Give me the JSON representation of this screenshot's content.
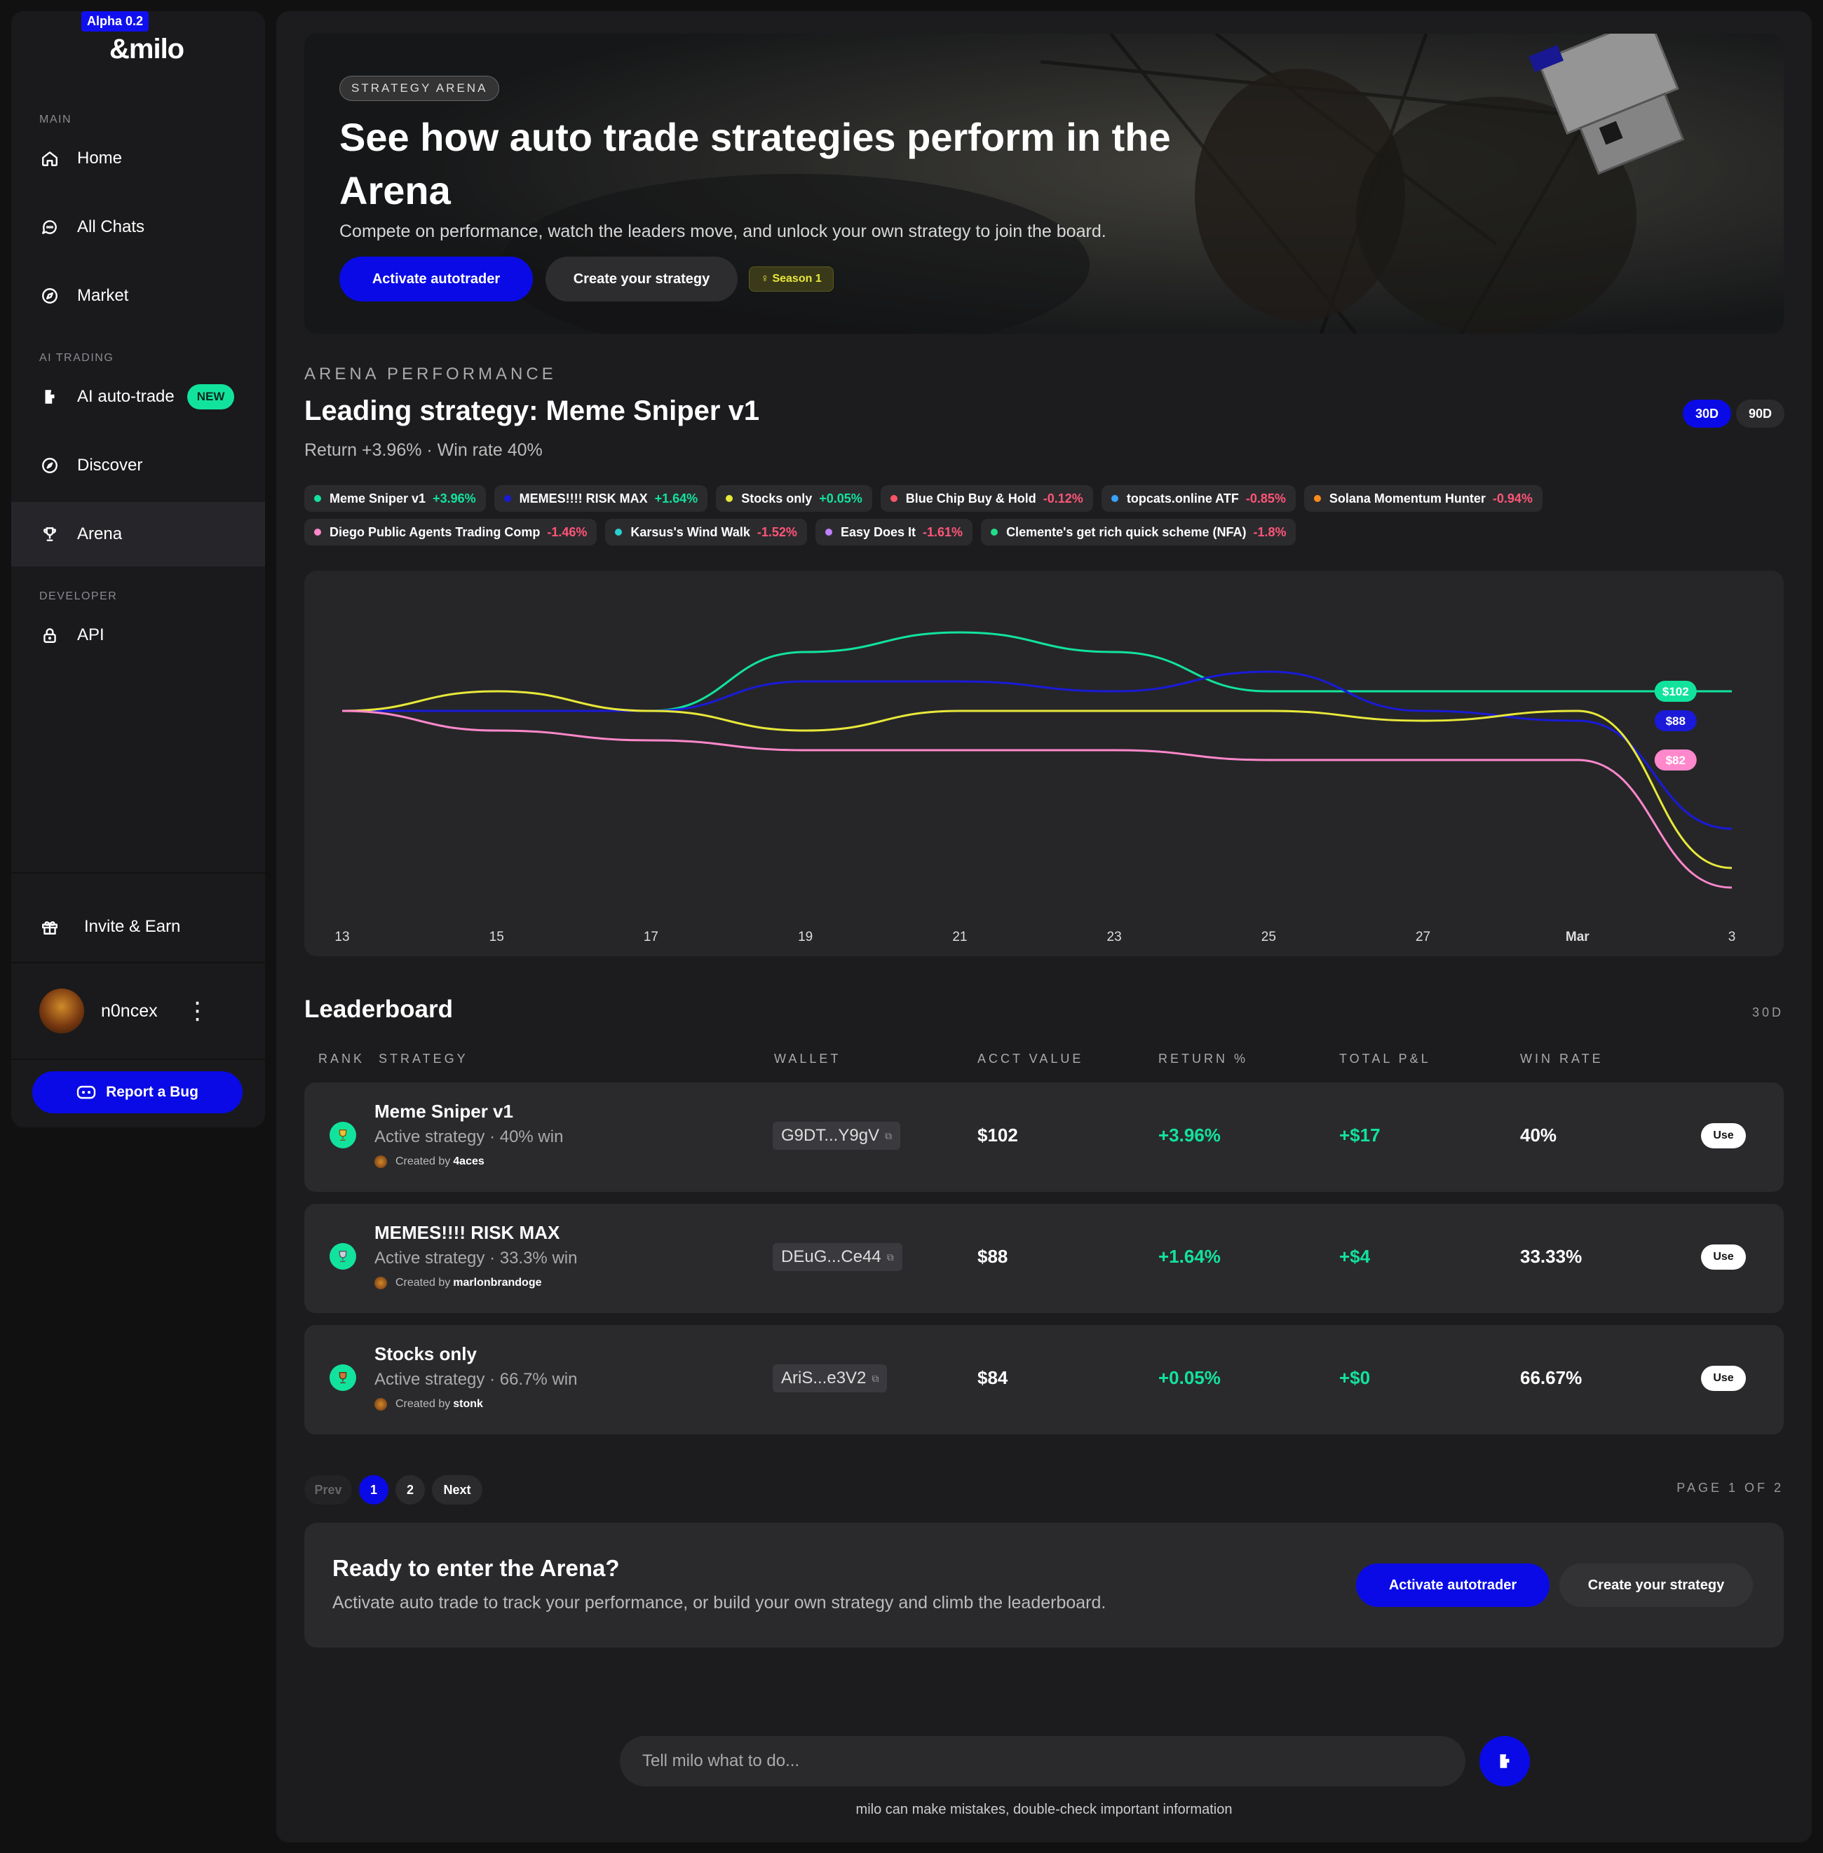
{
  "brand": {
    "badge": "Alpha 0.2",
    "name": "&milo"
  },
  "sidebar": {
    "sections": {
      "main": "MAIN",
      "ai": "AI TRADING",
      "dev": "DEVELOPER"
    },
    "items": [
      {
        "label": "Home",
        "icon": "home-icon"
      },
      {
        "label": "All Chats",
        "icon": "chat-icon"
      },
      {
        "label": "Market",
        "icon": "compass-icon"
      },
      {
        "label": "AI auto-trade",
        "icon": "bolt-icon",
        "badge": "NEW"
      },
      {
        "label": "Discover",
        "icon": "discover-icon"
      },
      {
        "label": "Arena",
        "icon": "trophy-icon",
        "active": true
      },
      {
        "label": "API",
        "icon": "lock-icon"
      },
      {
        "label": "Invite & Earn",
        "icon": "gift-icon"
      }
    ],
    "user": {
      "name": "n0ncex"
    },
    "report_bug": "Report a Bug"
  },
  "hero": {
    "tag": "STRATEGY ARENA",
    "title": "See how auto trade strategies perform in the Arena",
    "subtitle": "Compete on performance, watch the leaders move, and unlock your own strategy to join the board.",
    "activate": "Activate autotrader",
    "create": "Create your strategy",
    "season": "Season 1"
  },
  "performance": {
    "label": "ARENA PERFORMANCE",
    "title": "Leading strategy: Meme Sniper v1",
    "subtitle": "Return +3.96% · Win rate 40%",
    "ranges": [
      "30D",
      "90D"
    ],
    "selected_range": "30D"
  },
  "legend": [
    {
      "name": "Meme Sniper v1",
      "pct": "+3.96%",
      "color": "#12e39c"
    },
    {
      "name": "MEMES!!!! RISK MAX",
      "pct": "+1.64%",
      "color": "#1a1ad8"
    },
    {
      "name": "Stocks only",
      "pct": "+0.05%",
      "color": "#e8e83a"
    },
    {
      "name": "Blue Chip Buy & Hold",
      "pct": "-0.12%",
      "color": "#ff5566"
    },
    {
      "name": "topcats.online ATF",
      "pct": "-0.85%",
      "color": "#3aa0ff"
    },
    {
      "name": "Solana Momentum Hunter",
      "pct": "-0.94%",
      "color": "#ff8a1a"
    },
    {
      "name": "Diego Public Agents Trading Comp",
      "pct": "-1.46%",
      "color": "#ff88cc"
    },
    {
      "name": "Karsus's Wind Walk",
      "pct": "-1.52%",
      "color": "#2ad0d0"
    },
    {
      "name": "Easy Does It",
      "pct": "-1.61%",
      "color": "#c080ff"
    },
    {
      "name": "Clemente's get rich quick scheme (NFA)",
      "pct": "-1.8%",
      "color": "#22dd88"
    }
  ],
  "chart_data": {
    "type": "line",
    "x": [
      "13",
      "15",
      "17",
      "19",
      "21",
      "23",
      "25",
      "27",
      "Mar",
      "3"
    ],
    "series": [
      {
        "name": "Meme Sniper v1",
        "color": "#12e39c",
        "values": [
          100,
          100,
          100,
          106,
          108,
          106,
          102,
          102,
          102,
          102
        ]
      },
      {
        "name": "MEMES!!!! RISK MAX",
        "color": "#1a1ad8",
        "values": [
          100,
          100,
          100,
          103,
          103,
          102,
          104,
          100,
          99,
          88
        ]
      },
      {
        "name": "Stocks only",
        "color": "#e8e83a",
        "values": [
          100,
          102,
          100,
          98,
          100,
          100,
          100,
          99,
          100,
          84
        ]
      },
      {
        "name": "Diego Public Agents Trading Comp",
        "color": "#ff88cc",
        "values": [
          100,
          98,
          97,
          96,
          96,
          96,
          95,
          95,
          95,
          82
        ]
      }
    ],
    "end_labels": [
      "$102",
      "$88",
      "$82"
    ],
    "grid": false
  },
  "leaderboard": {
    "title": "Leaderboard",
    "period": "30D",
    "columns": [
      "RANK",
      "STRATEGY",
      "WALLET",
      "ACCT VALUE",
      "RETURN %",
      "TOTAL P&L",
      "WIN RATE"
    ],
    "rows": [
      {
        "name": "Meme Sniper v1",
        "meta": "Active strategy · 40% win",
        "creator_prefix": "Created by",
        "creator": "4aces",
        "wallet": "G9DT...Y9gV",
        "value": "$102",
        "ret": "+3.96%",
        "pnl": "+$17",
        "win": "40%",
        "action": "Use"
      },
      {
        "name": "MEMES!!!! RISK MAX",
        "meta": "Active strategy · 33.3% win",
        "creator_prefix": "Created by",
        "creator": "marlonbrandoge",
        "wallet": "DEuG...Ce44",
        "value": "$88",
        "ret": "+1.64%",
        "pnl": "+$4",
        "win": "33.33%",
        "action": "Use"
      },
      {
        "name": "Stocks only",
        "meta": "Active strategy · 66.7% win",
        "creator_prefix": "Created by",
        "creator": "stonk",
        "wallet": "AriS...e3V2",
        "value": "$84",
        "ret": "+0.05%",
        "pnl": "+$0",
        "win": "66.67%",
        "action": "Use"
      }
    ],
    "pagination": {
      "prev": "Prev",
      "pages": [
        "1",
        "2"
      ],
      "current": "1",
      "next": "Next",
      "label": "PAGE 1 OF 2"
    }
  },
  "cta": {
    "title": "Ready to enter the Arena?",
    "body": "Activate auto trade to track your performance, or build your own strategy and climb the leaderboard.",
    "activate": "Activate autotrader",
    "create": "Create your strategy"
  },
  "chat": {
    "placeholder": "Tell milo what to do...",
    "disclaimer": "milo can make mistakes, double-check important information"
  }
}
